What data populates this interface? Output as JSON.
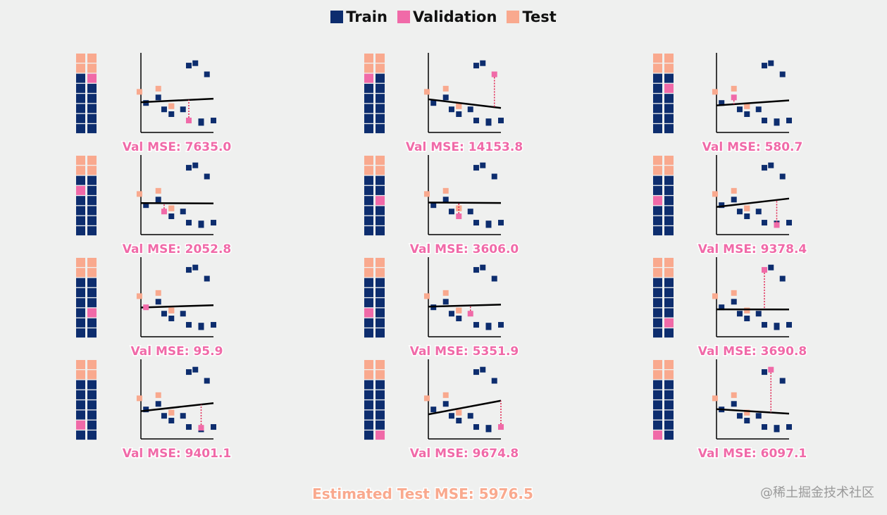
{
  "legend": [
    {
      "label": "Train",
      "color": "#0d2d6e"
    },
    {
      "label": "Validation",
      "color": "#f06aa8"
    },
    {
      "label": "Test",
      "color": "#f9a98e"
    }
  ],
  "colors": {
    "train": "#0d2d6e",
    "validation": "#f06aa8",
    "test": "#f9a98e",
    "fit_line": "#000000",
    "residual": "#e0224f"
  },
  "chart_data": {
    "type": "scatter",
    "description_grid": "2 columns x 8 rows of cells; top 2 rows test, remaining 12 cells are train/validation folds",
    "test_points": [
      {
        "x": -2,
        "y": 51
      },
      {
        "x": 24,
        "y": 55
      },
      {
        "x": 42,
        "y": 33
      },
      {
        "x": 42,
        "y": 33
      }
    ],
    "trainval_points": [
      {
        "x": 91,
        "y": 73
      },
      {
        "x": 66,
        "y": 15
      },
      {
        "x": 32,
        "y": 29
      },
      {
        "x": 24,
        "y": 44
      },
      {
        "x": 83,
        "y": 12
      },
      {
        "x": 42,
        "y": 23
      },
      {
        "x": 58,
        "y": 29
      },
      {
        "x": 7,
        "y": 37
      },
      {
        "x": 83,
        "y": 14
      },
      {
        "x": 66,
        "y": 84
      },
      {
        "x": 75,
        "y": 87
      },
      {
        "x": 100,
        "y": 15
      }
    ],
    "folds": [
      {
        "val_index": 1,
        "label": "Val MSE: 7635.0"
      },
      {
        "val_index": 0,
        "label": "Val MSE: 14153.8"
      },
      {
        "val_index": 3,
        "label": "Val MSE: 580.7"
      },
      {
        "val_index": 2,
        "label": "Val MSE: 2052.8"
      },
      {
        "val_index": 5,
        "label": "Val MSE: 3606.0"
      },
      {
        "val_index": 4,
        "label": "Val MSE: 9378.4"
      },
      {
        "val_index": 7,
        "label": "Val MSE: 95.9"
      },
      {
        "val_index": 6,
        "label": "Val MSE: 5351.9"
      },
      {
        "val_index": 9,
        "label": "Val MSE: 3690.8"
      },
      {
        "val_index": 8,
        "label": "Val MSE: 9401.1"
      },
      {
        "val_index": 11,
        "label": "Val MSE: 9674.8"
      },
      {
        "val_index": 10,
        "label": "Val MSE: 6097.1"
      }
    ],
    "xlim": [
      0,
      100
    ],
    "ylim": [
      0,
      100
    ],
    "grid": false,
    "legend": "top-center"
  },
  "footer": {
    "estimate_label": "Estimated Test MSE: 5976.5"
  },
  "watermark": "@稀土掘金技术社区"
}
